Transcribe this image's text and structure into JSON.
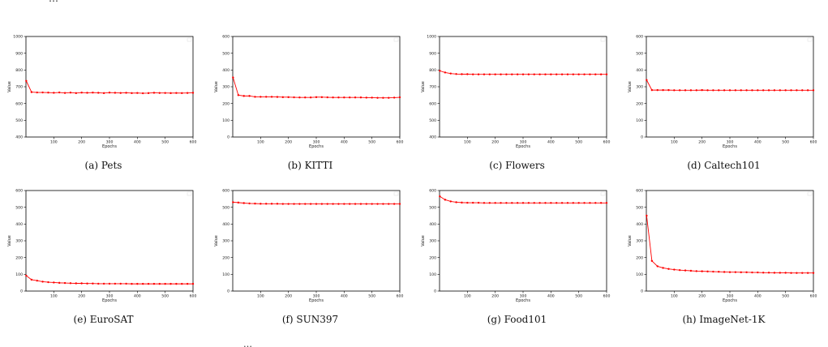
{
  "page": {
    "top_text": "…",
    "bottom_text": "…"
  },
  "chart_data": [
    {
      "type": "line",
      "caption": "(a) Pets",
      "xlabel": "Epochs",
      "ylabel": "Value",
      "xlim": [
        0,
        600
      ],
      "ylim": [
        400,
        1000
      ],
      "xticks": [
        100,
        200,
        300,
        400,
        500,
        600
      ],
      "yticks": [
        400,
        500,
        600,
        700,
        800,
        900,
        1000
      ],
      "color": "#ff0000",
      "x": [
        1,
        20,
        40,
        60,
        80,
        100,
        120,
        140,
        160,
        180,
        200,
        220,
        240,
        260,
        280,
        300,
        320,
        340,
        360,
        380,
        400,
        420,
        440,
        460,
        480,
        500,
        520,
        540,
        560,
        580,
        600
      ],
      "values": [
        735,
        668,
        666,
        666,
        665,
        664,
        666,
        663,
        665,
        662,
        665,
        664,
        665,
        664,
        662,
        665,
        664,
        663,
        664,
        662,
        663,
        661,
        662,
        664,
        663,
        663,
        662,
        663,
        662,
        663,
        664
      ]
    },
    {
      "type": "line",
      "caption": "(b) KITTI",
      "xlabel": "Epochs",
      "ylabel": "Value",
      "xlim": [
        0,
        600
      ],
      "ylim": [
        0,
        600
      ],
      "xticks": [
        100,
        200,
        300,
        400,
        500,
        600
      ],
      "yticks": [
        0,
        100,
        200,
        300,
        400,
        500,
        600
      ],
      "color": "#ff0000",
      "x": [
        1,
        20,
        40,
        60,
        80,
        100,
        120,
        140,
        160,
        180,
        200,
        220,
        240,
        260,
        280,
        300,
        320,
        340,
        360,
        380,
        400,
        420,
        440,
        460,
        480,
        500,
        520,
        540,
        560,
        580,
        600
      ],
      "values": [
        355,
        250,
        245,
        245,
        240,
        240,
        240,
        240,
        239,
        238,
        238,
        237,
        236,
        236,
        236,
        238,
        238,
        237,
        236,
        236,
        236,
        236,
        236,
        236,
        235,
        235,
        234,
        234,
        234,
        235,
        237
      ]
    },
    {
      "type": "line",
      "caption": "(c) Flowers",
      "xlabel": "Epochs",
      "ylabel": "Value",
      "xlim": [
        0,
        600
      ],
      "ylim": [
        400,
        1000
      ],
      "xticks": [
        100,
        200,
        300,
        400,
        500,
        600
      ],
      "yticks": [
        400,
        500,
        600,
        700,
        800,
        900,
        1000
      ],
      "color": "#ff0000",
      "x": [
        1,
        20,
        40,
        60,
        80,
        100,
        120,
        140,
        160,
        180,
        200,
        220,
        240,
        260,
        280,
        300,
        320,
        340,
        360,
        380,
        400,
        420,
        440,
        460,
        480,
        500,
        520,
        540,
        560,
        580,
        600
      ],
      "values": [
        795,
        785,
        779,
        776,
        775,
        775,
        774,
        774,
        774,
        774,
        774,
        774,
        774,
        774,
        774,
        774,
        774,
        774,
        774,
        774,
        774,
        774,
        774,
        774,
        774,
        774,
        774,
        774,
        774,
        774,
        774
      ]
    },
    {
      "type": "line",
      "caption": "(d) Caltech101",
      "xlabel": "Epochs",
      "ylabel": "Value",
      "xlim": [
        0,
        600
      ],
      "ylim": [
        0,
        600
      ],
      "xticks": [
        100,
        200,
        300,
        400,
        500,
        600
      ],
      "yticks": [
        0,
        100,
        200,
        300,
        400,
        500,
        600
      ],
      "color": "#ff0000",
      "x": [
        1,
        20,
        40,
        60,
        80,
        100,
        120,
        140,
        160,
        180,
        200,
        220,
        240,
        260,
        280,
        300,
        320,
        340,
        360,
        380,
        400,
        420,
        440,
        460,
        480,
        500,
        520,
        540,
        560,
        580,
        600
      ],
      "values": [
        340,
        280,
        280,
        280,
        280,
        279,
        279,
        279,
        279,
        279,
        280,
        279,
        279,
        279,
        279,
        279,
        279,
        279,
        279,
        279,
        279,
        279,
        279,
        279,
        279,
        279,
        279,
        279,
        279,
        279,
        279
      ]
    },
    {
      "type": "line",
      "caption": "(e) EuroSAT",
      "xlabel": "Epochs",
      "ylabel": "Value",
      "xlim": [
        0,
        600
      ],
      "ylim": [
        0,
        600
      ],
      "xticks": [
        100,
        200,
        300,
        400,
        500,
        600
      ],
      "yticks": [
        0,
        100,
        200,
        300,
        400,
        500,
        600
      ],
      "color": "#ff0000",
      "x": [
        1,
        20,
        40,
        60,
        80,
        100,
        120,
        140,
        160,
        180,
        200,
        220,
        240,
        260,
        280,
        300,
        320,
        340,
        360,
        380,
        400,
        420,
        440,
        460,
        480,
        500,
        520,
        540,
        560,
        580,
        600
      ],
      "values": [
        92,
        68,
        62,
        56,
        53,
        51,
        49,
        48,
        47,
        46,
        46,
        45,
        45,
        44,
        44,
        44,
        44,
        44,
        44,
        43,
        43,
        43,
        43,
        43,
        43,
        43,
        43,
        43,
        43,
        43,
        43
      ]
    },
    {
      "type": "line",
      "caption": "(f) SUN397",
      "xlabel": "Epochs",
      "ylabel": "Value",
      "xlim": [
        0,
        600
      ],
      "ylim": [
        0,
        600
      ],
      "xticks": [
        100,
        200,
        300,
        400,
        500,
        600
      ],
      "yticks": [
        0,
        100,
        200,
        300,
        400,
        500,
        600
      ],
      "color": "#ff0000",
      "x": [
        1,
        20,
        40,
        60,
        80,
        100,
        120,
        140,
        160,
        180,
        200,
        220,
        240,
        260,
        280,
        300,
        320,
        340,
        360,
        380,
        400,
        420,
        440,
        460,
        480,
        500,
        520,
        540,
        560,
        580,
        600
      ],
      "values": [
        530,
        528,
        525,
        523,
        522,
        521,
        521,
        521,
        521,
        520,
        520,
        520,
        520,
        520,
        520,
        520,
        520,
        520,
        520,
        520,
        520,
        520,
        520,
        520,
        520,
        520,
        520,
        520,
        520,
        520,
        520
      ]
    },
    {
      "type": "line",
      "caption": "(g) Food101",
      "xlabel": "Epochs",
      "ylabel": "Value",
      "xlim": [
        0,
        600
      ],
      "ylim": [
        0,
        600
      ],
      "xticks": [
        100,
        200,
        300,
        400,
        500,
        600
      ],
      "yticks": [
        0,
        100,
        200,
        300,
        400,
        500,
        600
      ],
      "color": "#ff0000",
      "x": [
        1,
        20,
        40,
        60,
        80,
        100,
        120,
        140,
        160,
        180,
        200,
        220,
        240,
        260,
        280,
        300,
        320,
        340,
        360,
        380,
        400,
        420,
        440,
        460,
        480,
        500,
        520,
        540,
        560,
        580,
        600
      ],
      "values": [
        565,
        545,
        535,
        530,
        528,
        527,
        527,
        527,
        526,
        526,
        526,
        526,
        526,
        526,
        526,
        526,
        526,
        526,
        526,
        526,
        526,
        526,
        526,
        526,
        526,
        526,
        526,
        526,
        526,
        526,
        526
      ]
    },
    {
      "type": "line",
      "caption": "(h) ImageNet-1K",
      "xlabel": "Epochs",
      "ylabel": "Value",
      "xlim": [
        0,
        600
      ],
      "ylim": [
        0,
        600
      ],
      "xticks": [
        100,
        200,
        300,
        400,
        500,
        600
      ],
      "yticks": [
        0,
        100,
        200,
        300,
        400,
        500,
        600
      ],
      "color": "#ff0000",
      "x": [
        1,
        20,
        40,
        60,
        80,
        100,
        120,
        140,
        160,
        180,
        200,
        220,
        240,
        260,
        280,
        300,
        320,
        340,
        360,
        380,
        400,
        420,
        440,
        460,
        480,
        500,
        520,
        540,
        560,
        580,
        600
      ],
      "values": [
        450,
        180,
        148,
        138,
        132,
        128,
        125,
        123,
        121,
        119,
        118,
        117,
        116,
        115,
        114,
        113,
        113,
        112,
        112,
        111,
        111,
        110,
        110,
        109,
        109,
        109,
        108,
        108,
        108,
        108,
        108
      ]
    }
  ]
}
